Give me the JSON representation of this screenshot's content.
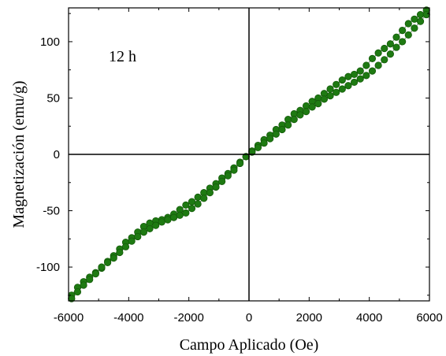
{
  "chart_data": {
    "type": "scatter",
    "xlabel": "Campo Aplicado (Oe)",
    "ylabel": "Magnetización (emu/g)",
    "annotation": "12 h",
    "xlim": [
      -6000,
      6000
    ],
    "ylim": [
      -130,
      130
    ],
    "x_ticks": [
      -6000,
      -4000,
      -2000,
      0,
      2000,
      4000,
      6000
    ],
    "x_tick_labels": [
      "-6000",
      "-4000",
      "-2000",
      "0",
      "2000",
      "4000",
      "6000"
    ],
    "y_ticks": [
      -100,
      -50,
      0,
      50,
      100
    ],
    "y_tick_labels": [
      "-100",
      "-50",
      "0",
      "50",
      "100"
    ],
    "grid": false,
    "colors": {
      "marker": "#1e7a12",
      "marker_edge": "#145a0a",
      "line": "#6a8f6a",
      "axis": "#000000"
    },
    "series": [
      {
        "branch": "descending",
        "x": [
          5900,
          5700,
          5500,
          5300,
          5100,
          4900,
          4700,
          4500,
          4300,
          4100,
          3900,
          3700,
          3500,
          3300,
          3100,
          2900,
          2700,
          2500,
          2300,
          2100,
          1900,
          1700,
          1500,
          1300,
          1100,
          900,
          700,
          500,
          300,
          100,
          -100,
          -300,
          -500,
          -700,
          -900,
          -1100,
          -1300,
          -1500,
          -1700,
          -1900,
          -2100,
          -2300,
          -2500,
          -2700,
          -2900,
          -3100,
          -3300,
          -3500,
          -3700,
          -3900,
          -4100,
          -4300,
          -4500,
          -4700,
          -4900,
          -5100,
          -5300,
          -5500,
          -5700,
          -5900
        ],
        "y": [
          128,
          124,
          120,
          116,
          110,
          104,
          98,
          94,
          90,
          85,
          79,
          74,
          71,
          69,
          66,
          62,
          58,
          54,
          50,
          47,
          43,
          39,
          36,
          31,
          26,
          22,
          17,
          13,
          8,
          3,
          -2,
          -7,
          -12,
          -17,
          -21,
          -26,
          -30,
          -34,
          -38,
          -42,
          -45,
          -49,
          -53,
          -56,
          -58,
          -59,
          -61,
          -64,
          -69,
          -74,
          -78,
          -84,
          -90,
          -95,
          -101,
          -105,
          -109,
          -113,
          -118,
          -125
        ]
      },
      {
        "branch": "ascending",
        "x": [
          -5900,
          -5700,
          -5500,
          -5300,
          -5100,
          -4900,
          -4700,
          -4500,
          -4300,
          -4100,
          -3900,
          -3700,
          -3500,
          -3300,
          -3100,
          -2900,
          -2700,
          -2500,
          -2300,
          -2100,
          -1900,
          -1700,
          -1500,
          -1300,
          -1100,
          -900,
          -700,
          -500,
          -300,
          -100,
          100,
          300,
          500,
          700,
          900,
          1100,
          1300,
          1500,
          1700,
          1900,
          2100,
          2300,
          2500,
          2700,
          2900,
          3100,
          3300,
          3500,
          3700,
          3900,
          4100,
          4300,
          4500,
          4700,
          4900,
          5100,
          5300,
          5500,
          5700,
          5900
        ],
        "y": [
          -128,
          -122,
          -116,
          -111,
          -106,
          -100,
          -96,
          -92,
          -87,
          -82,
          -77,
          -73,
          -69,
          -66,
          -63,
          -60,
          -58,
          -56,
          -54,
          -52,
          -48,
          -44,
          -39,
          -34,
          -29,
          -24,
          -19,
          -14,
          -8,
          -2,
          2,
          6,
          10,
          14,
          18,
          22,
          26,
          31,
          35,
          38,
          42,
          45,
          49,
          52,
          55,
          58,
          61,
          64,
          67,
          70,
          74,
          79,
          84,
          89,
          95,
          100,
          106,
          112,
          118,
          124
        ]
      }
    ]
  }
}
